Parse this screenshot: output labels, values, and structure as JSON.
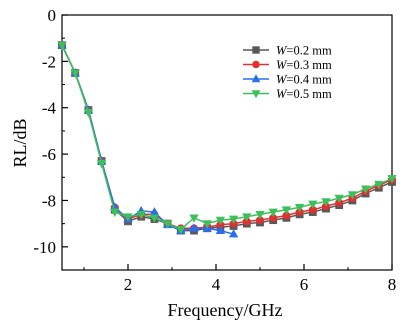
{
  "chart_data": {
    "type": "line",
    "xlabel": "Frequency/GHz",
    "ylabel": "RL/dB",
    "xlim": [
      0.5,
      8
    ],
    "ylim": [
      -11,
      0
    ],
    "xticks": [
      2,
      4,
      6,
      8
    ],
    "yticks": [
      0,
      -2,
      -4,
      -6,
      -8,
      -10
    ],
    "xtick_labels": [
      "2",
      "4",
      "6",
      "8"
    ],
    "ytick_labels": [
      "0",
      "-2",
      "-4",
      "-6",
      "-8",
      "-10"
    ],
    "grid": false,
    "legend_position": "top-right",
    "x": [
      0.5,
      0.8,
      1.1,
      1.4,
      1.7,
      2.0,
      2.3,
      2.6,
      2.9,
      3.2,
      3.5,
      3.8,
      4.1,
      4.4,
      4.7,
      5.0,
      5.3,
      5.6,
      5.9,
      6.2,
      6.5,
      6.8,
      7.1,
      7.4,
      7.7,
      8.0
    ],
    "series": [
      {
        "name": "W=0.2 mm",
        "var": "W",
        "rest": "=0.2 mm",
        "color": "#595959",
        "marker": "square",
        "values": [
          -1.3,
          -2.5,
          -4.1,
          -6.3,
          -8.4,
          -8.9,
          -8.7,
          -8.8,
          -9.0,
          -9.3,
          -9.3,
          -9.2,
          -9.15,
          -9.1,
          -9.0,
          -8.95,
          -8.85,
          -8.75,
          -8.6,
          -8.5,
          -8.35,
          -8.2,
          -8.0,
          -7.7,
          -7.45,
          -7.2
        ]
      },
      {
        "name": "W=0.3 mm",
        "var": "W",
        "rest": "=0.3 mm",
        "color": "#e03030",
        "marker": "circle",
        "values": [
          -1.3,
          -2.5,
          -4.1,
          -6.3,
          -8.3,
          -8.8,
          -8.6,
          -8.6,
          -9.0,
          -9.2,
          -9.2,
          -9.15,
          -9.05,
          -9.0,
          -8.9,
          -8.85,
          -8.75,
          -8.65,
          -8.5,
          -8.4,
          -8.25,
          -8.1,
          -7.9,
          -7.6,
          -7.35,
          -7.1
        ]
      },
      {
        "name": "W=0.4 mm",
        "var": "W",
        "rest": "=0.4 mm",
        "color": "#2a6ef0",
        "marker": "triangle-up",
        "values": [
          -1.3,
          -2.5,
          -4.1,
          -6.3,
          -8.3,
          -8.8,
          -8.45,
          -8.5,
          -9.05,
          -9.3,
          -9.2,
          -9.2,
          -9.3,
          -9.45,
          null,
          null,
          null,
          null,
          null,
          null,
          null,
          null,
          null,
          null,
          null,
          null
        ]
      },
      {
        "name": "W=0.5 mm",
        "var": "W",
        "rest": "=0.5 mm",
        "color": "#3cc05a",
        "marker": "triangle-down",
        "values": [
          -1.3,
          -2.5,
          -4.2,
          -6.4,
          -8.5,
          -8.7,
          -8.6,
          -8.75,
          -9.0,
          -9.25,
          -8.75,
          -9.0,
          -8.85,
          -8.8,
          -8.7,
          -8.6,
          -8.5,
          -8.4,
          -8.3,
          -8.15,
          -8.05,
          -7.9,
          -7.75,
          -7.5,
          -7.3,
          -7.05
        ]
      }
    ]
  }
}
